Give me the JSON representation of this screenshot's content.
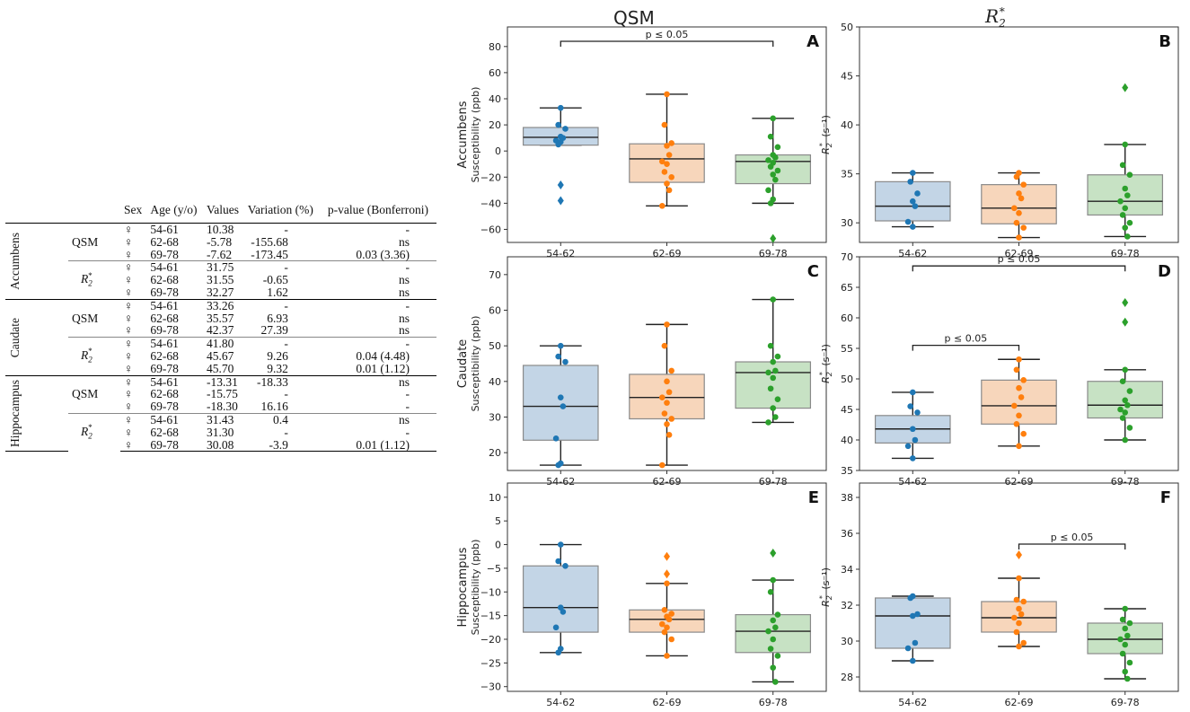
{
  "table": {
    "headers": [
      "Sex",
      "Age (y/o)",
      "Values",
      "Variation (%)",
      "p-value (Bonferroni)"
    ],
    "sex_symbol": "♀",
    "regions": [
      {
        "name": "Accumbens",
        "metrics": [
          {
            "name": "QSM",
            "rows": [
              [
                "54-61",
                "10.38",
                "-",
                "-"
              ],
              [
                "62-68",
                "-5.78",
                "-155.68",
                "ns"
              ],
              [
                "69-78",
                "-7.62",
                "-173.45",
                "0.03 (3.36)"
              ]
            ]
          },
          {
            "name": "R2*",
            "rows": [
              [
                "54-61",
                "31.75",
                "-",
                "-"
              ],
              [
                "62-68",
                "31.55",
                "-0.65",
                "ns"
              ],
              [
                "69-78",
                "32.27",
                "1.62",
                "ns"
              ]
            ]
          }
        ]
      },
      {
        "name": "Caudate",
        "metrics": [
          {
            "name": "QSM",
            "rows": [
              [
                "54-61",
                "33.26",
                "-",
                "-"
              ],
              [
                "62-68",
                "35.57",
                "6.93",
                "ns"
              ],
              [
                "69-78",
                "42.37",
                "27.39",
                "ns"
              ]
            ]
          },
          {
            "name": "R2*",
            "rows": [
              [
                "54-61",
                "41.80",
                "-",
                "-"
              ],
              [
                "62-68",
                "45.67",
                "9.26",
                "0.04 (4.48)"
              ],
              [
                "69-78",
                "45.70",
                "9.32",
                "0.01 (1.12)"
              ]
            ]
          }
        ]
      },
      {
        "name": "Hippocampus",
        "metrics": [
          {
            "name": "QSM",
            "rows": [
              [
                "54-61",
                "-13.31",
                "-18.33",
                "ns"
              ],
              [
                "62-68",
                "-15.75",
                "-",
                "-"
              ],
              [
                "69-78",
                "-18.30",
                "16.16",
                "-"
              ]
            ]
          },
          {
            "name": "R2*",
            "rows": [
              [
                "54-61",
                "31.43",
                "0.4",
                "ns"
              ],
              [
                "62-68",
                "31.30",
                "-",
                "-"
              ],
              [
                "69-78",
                "30.08",
                "-3.9",
                "0.01 (1.12)"
              ]
            ]
          }
        ]
      }
    ]
  },
  "column_titles": {
    "qsm": "QSM",
    "r2": "R",
    "r2_sub": "2",
    "r2_sup": "*"
  },
  "colors": {
    "blue": "#1f77b4",
    "orange": "#ff7f0e",
    "green": "#2ca02c",
    "blue_box": "#c3d5e6",
    "orange_box": "#f7d6bb",
    "green_box": "#c7e2c4"
  },
  "chart_data": [
    {
      "panel": "A",
      "type": "box",
      "region": "Accumbens",
      "ylabel": "Accumbens\nSusceptibility (ppb)",
      "categories": [
        "54-62",
        "62-69",
        "69-78"
      ],
      "ylim": [
        -70,
        95
      ],
      "yticks": [
        -60,
        -40,
        -20,
        0,
        20,
        40,
        60,
        80
      ],
      "boxes": [
        {
          "q1": 4.5,
          "med": 10.5,
          "q3": 18,
          "wlo": 4.5,
          "whi": 33,
          "out": [
            -26,
            -38
          ],
          "pts": [
            33,
            20,
            17,
            11,
            10,
            8,
            7,
            5
          ]
        },
        {
          "q1": -24,
          "med": -6,
          "q3": 5.5,
          "wlo": -42,
          "whi": 43.5,
          "out": [],
          "pts": [
            43.5,
            20,
            6,
            4,
            -3,
            -8,
            -10,
            -16,
            -20,
            -25,
            -30,
            -42
          ]
        },
        {
          "q1": -25,
          "med": -8,
          "q3": -3,
          "wlo": -40,
          "whi": 25,
          "out": [
            -67
          ],
          "pts": [
            25,
            11,
            3,
            -3,
            -5,
            -7,
            -9,
            -12,
            -15,
            -18,
            -22,
            -30,
            -37,
            -40
          ]
        }
      ],
      "sig": [
        {
          "from": 0,
          "to": 2,
          "y": 84,
          "label": "p ≤ 0.05"
        }
      ]
    },
    {
      "panel": "B",
      "type": "box",
      "region": "Accumbens",
      "ylabel": "R2* (s⁻¹)",
      "categories": [
        "54-62",
        "62-69",
        "69-78"
      ],
      "ylim": [
        28,
        50
      ],
      "yticks": [
        30,
        35,
        40,
        45,
        50
      ],
      "boxes": [
        {
          "q1": 30.2,
          "med": 31.7,
          "q3": 34.2,
          "wlo": 29.6,
          "whi": 35.1,
          "out": [],
          "pts": [
            35.1,
            34.2,
            33,
            32.2,
            31.7,
            30.1,
            29.6
          ]
        },
        {
          "q1": 29.9,
          "med": 31.5,
          "q3": 33.9,
          "wlo": 28.5,
          "whi": 35.1,
          "out": [],
          "pts": [
            35.1,
            34.7,
            33.9,
            33,
            32.5,
            31.5,
            31,
            30,
            29.5,
            28.5
          ]
        },
        {
          "q1": 30.8,
          "med": 32.2,
          "q3": 34.9,
          "wlo": 28.6,
          "whi": 38,
          "out": [
            43.8
          ],
          "pts": [
            38,
            35.9,
            34.9,
            33.5,
            32.8,
            32.2,
            31.5,
            30.8,
            30,
            29.5,
            28.6
          ]
        }
      ],
      "sig": []
    },
    {
      "panel": "C",
      "type": "box",
      "region": "Caudate",
      "ylabel": "Caudate\nSusceptibility (ppb)",
      "categories": [
        "54-62",
        "62-69",
        "69-78"
      ],
      "ylim": [
        15,
        75
      ],
      "yticks": [
        20,
        30,
        40,
        50,
        60,
        70
      ],
      "boxes": [
        {
          "q1": 23.5,
          "med": 33,
          "q3": 44.5,
          "wlo": 16.5,
          "whi": 50,
          "out": [],
          "pts": [
            50,
            47,
            45.5,
            35.5,
            33,
            24,
            17,
            16.5
          ]
        },
        {
          "q1": 29.5,
          "med": 35.5,
          "q3": 42,
          "wlo": 16.5,
          "whi": 56,
          "out": [],
          "pts": [
            56,
            50,
            43,
            40,
            37,
            35.5,
            34,
            31,
            29.5,
            28,
            25,
            16.5
          ]
        },
        {
          "q1": 32.5,
          "med": 42.5,
          "q3": 45.5,
          "wlo": 28.5,
          "whi": 63,
          "out": [],
          "pts": [
            63,
            50,
            47,
            45.5,
            43,
            42.5,
            41,
            38,
            35,
            32.5,
            30,
            28.5
          ]
        }
      ],
      "sig": []
    },
    {
      "panel": "D",
      "type": "box",
      "region": "Caudate",
      "ylabel": "R2* (s⁻¹)",
      "categories": [
        "54-62",
        "62-69",
        "69-78"
      ],
      "ylim": [
        35,
        70
      ],
      "yticks": [
        35,
        40,
        45,
        50,
        55,
        60,
        65,
        70
      ],
      "boxes": [
        {
          "q1": 39.5,
          "med": 41.8,
          "q3": 44,
          "wlo": 37,
          "whi": 47.8,
          "out": [],
          "pts": [
            47.8,
            45.5,
            44.5,
            41.8,
            40,
            39,
            37
          ]
        },
        {
          "q1": 42.6,
          "med": 45.6,
          "q3": 49.8,
          "wlo": 39,
          "whi": 53.2,
          "out": [],
          "pts": [
            53.2,
            51.5,
            49.8,
            48.5,
            47,
            45.6,
            44,
            42.6,
            41,
            39
          ]
        },
        {
          "q1": 43.6,
          "med": 45.7,
          "q3": 49.6,
          "wlo": 40,
          "whi": 51.5,
          "out": [
            59.3,
            62.5
          ],
          "pts": [
            51.5,
            49.6,
            48,
            46.5,
            45.7,
            45,
            44.5,
            43.6,
            42,
            40
          ]
        }
      ],
      "sig": [
        {
          "from": 0,
          "to": 1,
          "y": 55.5,
          "label": "p ≤ 0.05"
        },
        {
          "from": 0,
          "to": 2,
          "y": 68.5,
          "label": "p ≤ 0.05"
        }
      ]
    },
    {
      "panel": "E",
      "type": "box",
      "region": "Hippocampus",
      "ylabel": "Hippocampus\nSusceptibility (ppb)",
      "categories": [
        "54-62",
        "62-69",
        "69-78"
      ],
      "ylim": [
        -31,
        13
      ],
      "yticks": [
        -30,
        -25,
        -20,
        -15,
        -10,
        -5,
        0,
        5,
        10
      ],
      "boxes": [
        {
          "q1": -18.5,
          "med": -13.3,
          "q3": -4.5,
          "wlo": -22.8,
          "whi": 0,
          "out": [],
          "pts": [
            0,
            -3.5,
            -4.5,
            -13.3,
            -14.2,
            -17.5,
            -22,
            -22.8
          ]
        },
        {
          "q1": -18.5,
          "med": -15.8,
          "q3": -13.8,
          "wlo": -23.5,
          "whi": -8.2,
          "out": [
            -2.5,
            -6.2
          ],
          "pts": [
            -8.2,
            -13.8,
            -14.6,
            -15.2,
            -15.8,
            -16.8,
            -17.5,
            -18.5,
            -20,
            -23.5
          ]
        },
        {
          "q1": -22.8,
          "med": -18.3,
          "q3": -14.8,
          "wlo": -29,
          "whi": -7.5,
          "out": [
            -1.8
          ],
          "pts": [
            -7.5,
            -10,
            -14.8,
            -16,
            -17.5,
            -18.3,
            -20,
            -22,
            -23.5,
            -26,
            -29
          ]
        }
      ],
      "sig": []
    },
    {
      "panel": "F",
      "type": "box",
      "region": "Hippocampus",
      "ylabel": "R2* (s⁻¹)",
      "categories": [
        "54-62",
        "62-69",
        "69-78"
      ],
      "ylim": [
        27.2,
        38.8
      ],
      "yticks": [
        28,
        30,
        32,
        34,
        36,
        38
      ],
      "boxes": [
        {
          "q1": 29.6,
          "med": 31.4,
          "q3": 32.4,
          "wlo": 28.9,
          "whi": 32.5,
          "out": [],
          "pts": [
            32.5,
            32.4,
            31.5,
            31.4,
            29.9,
            29.6,
            28.9
          ]
        },
        {
          "q1": 30.5,
          "med": 31.3,
          "q3": 32.2,
          "wlo": 29.7,
          "whi": 33.5,
          "out": [
            34.8
          ],
          "pts": [
            33.5,
            32.3,
            32.2,
            31.8,
            31.5,
            31.3,
            31,
            30.5,
            29.9,
            29.7
          ]
        },
        {
          "q1": 29.3,
          "med": 30.1,
          "q3": 31,
          "wlo": 27.9,
          "whi": 31.8,
          "out": [],
          "pts": [
            31.8,
            31.2,
            31,
            30.7,
            30.3,
            30.1,
            29.8,
            29.3,
            28.8,
            28.3,
            27.9
          ]
        }
      ],
      "sig": [
        {
          "from": 1,
          "to": 2,
          "y": 35.4,
          "label": "p ≤ 0.05"
        }
      ]
    }
  ]
}
